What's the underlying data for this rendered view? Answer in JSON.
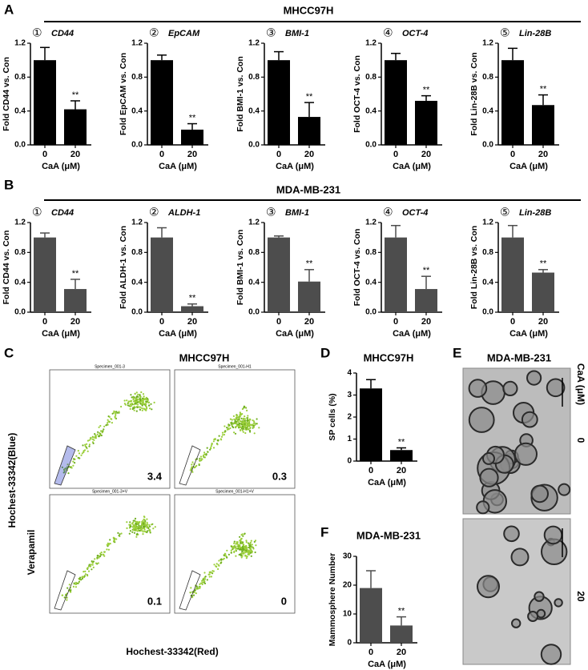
{
  "panel_a": {
    "letter": "A",
    "title": "MHCC97H"
  },
  "panel_b": {
    "letter": "B",
    "title": "MDA-MB-231"
  },
  "panel_c": {
    "letter": "C",
    "title": "MHCC97H",
    "y_label": "Hochest-33342(Blue)",
    "x_label": "Hochest-33342(Red)",
    "row_label": "Verapamil",
    "plots": [
      {
        "title": "Specimen_001-3",
        "sp": 3.4
      },
      {
        "title": "Specimen_001-H1",
        "sp": 0.3
      },
      {
        "title": "Specimen_001-3+V",
        "sp": 0.1
      },
      {
        "title": "Specimen_001-H1+V",
        "sp": 0
      }
    ]
  },
  "panel_d": {
    "letter": "D",
    "title": "MHCC97H"
  },
  "panel_e": {
    "letter": "E",
    "title": "MDA-MB-231",
    "axis_label": "CaA (μM)",
    "doses": [
      "0",
      "20"
    ]
  },
  "panel_f": {
    "letter": "F",
    "title": "MDA-MB-231"
  },
  "chart_data": [
    {
      "type": "bar",
      "number": "①",
      "title": "CD44",
      "ylabel": "Fold CD44 vs. Con",
      "xlabel": "CaA (μM)",
      "categories": [
        "0",
        "20"
      ],
      "values": [
        1.0,
        0.42
      ],
      "errors": [
        0.15,
        0.1
      ],
      "annotation": "**",
      "color": "#000000",
      "ylim": [
        0,
        1.2
      ],
      "yticks": [
        {
          "value": 0,
          "label": "0.0"
        },
        0.4,
        0.8,
        1.2
      ]
    },
    {
      "type": "bar",
      "number": "②",
      "title": "EpCAM",
      "ylabel": "Fold EpCAM vs. Con",
      "xlabel": "CaA (μM)",
      "categories": [
        "0",
        "20"
      ],
      "values": [
        1.0,
        0.18
      ],
      "errors": [
        0.06,
        0.07
      ],
      "annotation": "**",
      "color": "#000000",
      "ylim": [
        0,
        1.2
      ],
      "yticks": [
        {
          "value": 0,
          "label": "0.0"
        },
        0.4,
        0.8,
        1.2
      ]
    },
    {
      "type": "bar",
      "number": "③",
      "title": "BMI-1",
      "ylabel": "Fold BMI-1 vs. Con",
      "xlabel": "CaA (μM)",
      "categories": [
        "0",
        "20"
      ],
      "values": [
        1.0,
        0.33
      ],
      "errors": [
        0.1,
        0.17
      ],
      "annotation": "**",
      "color": "#000000",
      "ylim": [
        0,
        1.2
      ],
      "yticks": [
        {
          "value": 0,
          "label": "0.0"
        },
        0.4,
        0.8,
        1.2
      ]
    },
    {
      "type": "bar",
      "number": "④",
      "title": "OCT-4",
      "ylabel": "Fold OCT-4 vs. Con",
      "xlabel": "CaA (μM)",
      "categories": [
        "0",
        "20"
      ],
      "values": [
        1.0,
        0.52
      ],
      "errors": [
        0.08,
        0.06
      ],
      "annotation": "**",
      "color": "#000000",
      "ylim": [
        0,
        1.2
      ],
      "yticks": [
        {
          "value": 0,
          "label": "0.0"
        },
        0.4,
        0.8,
        1.2
      ]
    },
    {
      "type": "bar",
      "number": "⑤",
      "title": "Lin-28B",
      "ylabel": "Fold Lin-28B vs. Con",
      "xlabel": "CaA (μM)",
      "categories": [
        "0",
        "20"
      ],
      "values": [
        1.0,
        0.47
      ],
      "errors": [
        0.14,
        0.12
      ],
      "annotation": "**",
      "color": "#000000",
      "ylim": [
        0,
        1.2
      ],
      "yticks": [
        {
          "value": 0,
          "label": "0.0"
        },
        0.4,
        0.8,
        1.2
      ]
    },
    {
      "type": "bar",
      "number": "①",
      "title": "CD44",
      "ylabel": "Fold CD44 vs. Con",
      "xlabel": "CaA (μM)",
      "categories": [
        "0",
        "20"
      ],
      "values": [
        1.0,
        0.31
      ],
      "errors": [
        0.06,
        0.13
      ],
      "annotation": "**",
      "color": "#4d4d4d",
      "ylim": [
        0,
        1.2
      ],
      "yticks": [
        {
          "value": 0,
          "label": "0.0"
        },
        0.4,
        0.8,
        1.2
      ]
    },
    {
      "type": "bar",
      "number": "②",
      "title": "ALDH-1",
      "ylabel": "Fold ALDH-1 vs. Con",
      "xlabel": "CaA (μM)",
      "categories": [
        "0",
        "20"
      ],
      "values": [
        1.0,
        0.08
      ],
      "errors": [
        0.13,
        0.03
      ],
      "annotation": "**",
      "color": "#4d4d4d",
      "ylim": [
        0,
        1.2
      ],
      "yticks": [
        {
          "value": 0,
          "label": "0.0"
        },
        0.4,
        0.8,
        1.2
      ]
    },
    {
      "type": "bar",
      "number": "③",
      "title": "BMI-1",
      "ylabel": "Fold BMI-1 vs. Con",
      "xlabel": "CaA (μM)",
      "categories": [
        "0",
        "20"
      ],
      "values": [
        1.0,
        0.41
      ],
      "errors": [
        0.02,
        0.16
      ],
      "annotation": "**",
      "color": "#4d4d4d",
      "ylim": [
        0,
        1.2
      ],
      "yticks": [
        {
          "value": 0,
          "label": "0.0"
        },
        0.4,
        0.8,
        1.2
      ]
    },
    {
      "type": "bar",
      "number": "④",
      "title": "OCT-4",
      "ylabel": "Fold OCT-4 vs. Con",
      "xlabel": "CaA (μM)",
      "categories": [
        "0",
        "20"
      ],
      "values": [
        1.0,
        0.31
      ],
      "errors": [
        0.16,
        0.17
      ],
      "annotation": "**",
      "color": "#4d4d4d",
      "ylim": [
        0,
        1.2
      ],
      "yticks": [
        {
          "value": 0,
          "label": "0.0"
        },
        0.4,
        0.8,
        1.2
      ]
    },
    {
      "type": "bar",
      "number": "⑤",
      "title": "Lin-28B",
      "ylabel": "Fold Lin-28B vs. Con",
      "xlabel": "CaA (μM)",
      "categories": [
        "0",
        "20"
      ],
      "values": [
        1.0,
        0.53
      ],
      "errors": [
        0.16,
        0.04
      ],
      "annotation": "**",
      "color": "#4d4d4d",
      "ylim": [
        0,
        1.2
      ],
      "yticks": [
        {
          "value": 0,
          "label": "0.0"
        },
        0.4,
        0.8,
        1.2
      ]
    },
    {
      "type": "bar",
      "ylabel": "SP cells (%)",
      "xlabel": "CaA (μM)",
      "categories": [
        "0",
        "20"
      ],
      "values": [
        3.3,
        0.5
      ],
      "errors": [
        0.4,
        0.1
      ],
      "annotation": "**",
      "color": "#000000",
      "ylim": [
        0,
        4
      ],
      "yticks": [
        0,
        1,
        2,
        3,
        4
      ]
    },
    {
      "type": "bar",
      "ylabel": "Mammosphere Number",
      "xlabel": "CaA (μM)",
      "categories": [
        "0",
        "20"
      ],
      "values": [
        19,
        6
      ],
      "errors": [
        6,
        3
      ],
      "annotation": "**",
      "color": "#4d4d4d",
      "ylim": [
        0,
        30
      ],
      "yticks": [
        0,
        10,
        20,
        30
      ]
    }
  ]
}
